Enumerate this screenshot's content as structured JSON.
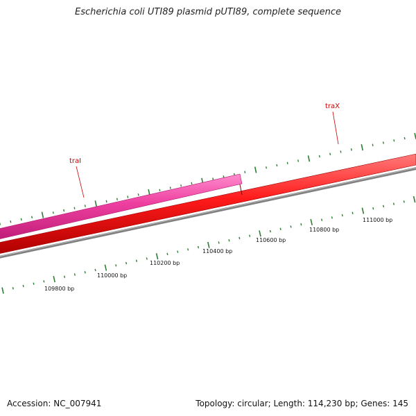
{
  "title": "Escherichia coli UTI89 plasmid pUTI89, complete sequence",
  "footer": {
    "accession": "Accession: NC_007941",
    "summary": "Topology: circular; Length: 114,230 bp; Genes: 145"
  },
  "genes": [
    {
      "name": "traI",
      "color": "#e8338f",
      "strand": "forward-outer"
    },
    {
      "name": "traX",
      "color": "#ff1a1a",
      "strand": "forward"
    }
  ],
  "backbone": {
    "color": "#808080"
  },
  "scale": {
    "unit": "bp",
    "labels": [
      "109800 bp",
      "110000 bp",
      "110200 bp",
      "110400 bp",
      "110600 bp",
      "110800 bp",
      "111000 bp"
    ],
    "tick_color": "#2e7d32"
  },
  "colors": {
    "gene_label": "#cc0000",
    "background": "#ffffff"
  }
}
